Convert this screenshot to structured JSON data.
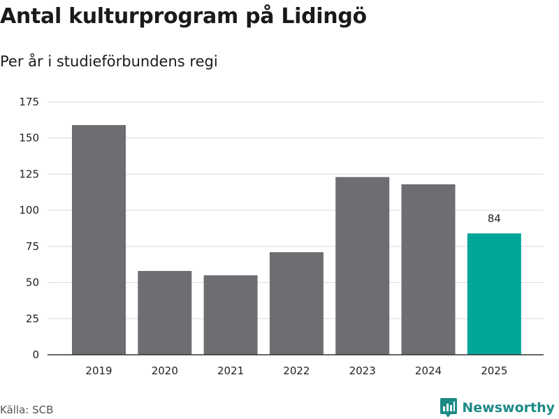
{
  "title": "Antal kulturprogram på Lidingö",
  "subtitle": "Per år i studieförbundens regi",
  "source": "Källa: SCB",
  "brand": "Newsworthy",
  "colors": {
    "bar": "#6e6d72",
    "highlight": "#00a59a",
    "grid": "#d9d9d9",
    "brand": "#1d8a86"
  },
  "chart_data": {
    "type": "bar",
    "categories": [
      "2019",
      "2020",
      "2021",
      "2022",
      "2023",
      "2024",
      "2025"
    ],
    "values": [
      159,
      58,
      55,
      71,
      123,
      118,
      84
    ],
    "highlight_index": 6,
    "data_labels": {
      "6": "84"
    },
    "ylim": [
      0,
      175
    ],
    "yticks": [
      0,
      25,
      50,
      75,
      100,
      125,
      150,
      175
    ],
    "grid": true,
    "xlabel": "",
    "ylabel": ""
  }
}
